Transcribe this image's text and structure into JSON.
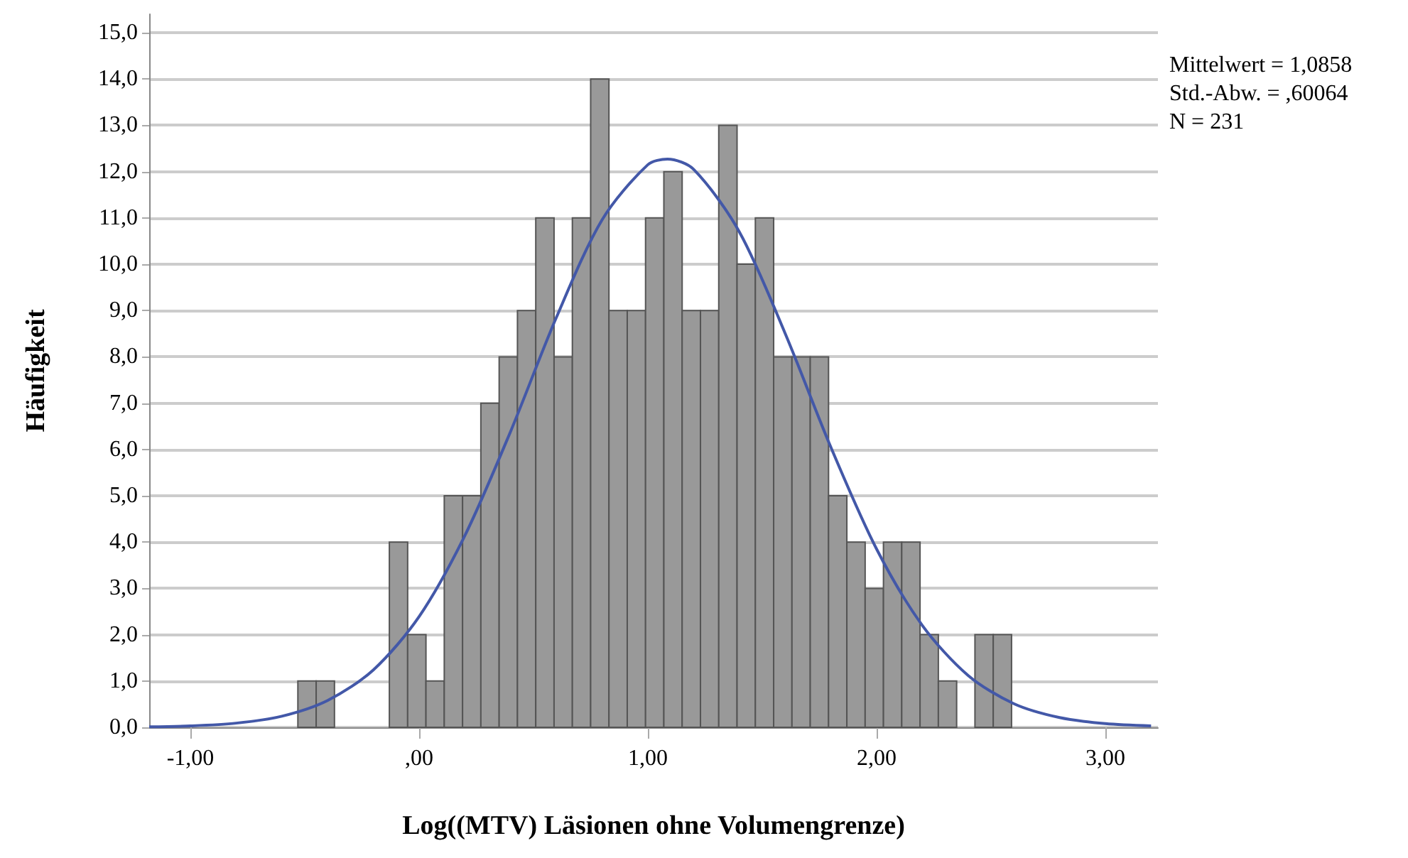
{
  "chart_data": {
    "type": "histogram",
    "xlabel": "Log((MTV) Läsionen ohne Volumengrenze)",
    "ylabel": "Häufigkeit",
    "annotations": [
      "Mittelwert = 1,0858",
      "Std.-Abw. = ,60064",
      "N = 231"
    ],
    "bins": [
      -0.53,
      -0.45,
      -0.37,
      -0.29,
      -0.21,
      -0.13,
      -0.05,
      0.03,
      0.11,
      0.19,
      0.27,
      0.35,
      0.43,
      0.51,
      0.59,
      0.67,
      0.75,
      0.83,
      0.91,
      0.99,
      1.07,
      1.15,
      1.23,
      1.31,
      1.39,
      1.47,
      1.55,
      1.63,
      1.71,
      1.79,
      1.87,
      1.95,
      2.03,
      2.11,
      2.19,
      2.27,
      2.35,
      2.43,
      2.51,
      2.59
    ],
    "series": [
      {
        "color": "#999999",
        "values": [
          1,
          1,
          0,
          0,
          0,
          4,
          2,
          1,
          5,
          5,
          7,
          8,
          9,
          11,
          8,
          11,
          14,
          9,
          9,
          11,
          12,
          9,
          9,
          13,
          10,
          11,
          8,
          8,
          8,
          5,
          4,
          3,
          4,
          4,
          2,
          1,
          0,
          2,
          2
        ]
      },
      {
        "type": "line",
        "color": "#4358a8",
        "x": [
          -1.18,
          -1.0,
          -0.8,
          -0.6,
          -0.4,
          -0.2,
          0,
          0.2,
          0.4,
          0.6,
          0.8,
          1.0,
          1.0858,
          1.2,
          1.4,
          1.6,
          1.8,
          2.0,
          2.2,
          2.4,
          2.6,
          2.8,
          3.0,
          3.2
        ],
        "values": [
          0.01,
          0.03,
          0.09,
          0.24,
          0.58,
          1.24,
          2.39,
          4.14,
          6.39,
          8.85,
          10.96,
          12.15,
          12.27,
          12.05,
          10.7,
          8.51,
          6.05,
          3.85,
          2.2,
          1.12,
          0.51,
          0.21,
          0.08,
          0.03
        ]
      }
    ],
    "xlim": [
      -1.18,
      3.23
    ],
    "xticks": [
      {
        "value": -1,
        "label": "-1,00"
      },
      {
        "value": 0,
        "label": ",00"
      },
      {
        "value": 1,
        "label": "1,00"
      },
      {
        "value": 2,
        "label": "2,00"
      },
      {
        "value": 3,
        "label": "3,00"
      }
    ],
    "ylim": [
      0,
      15.4
    ],
    "yticks": [
      {
        "value": 0,
        "label": "0,0"
      },
      {
        "value": 1,
        "label": "1,0"
      },
      {
        "value": 2,
        "label": "2,0"
      },
      {
        "value": 3,
        "label": "3,0"
      },
      {
        "value": 4,
        "label": "4,0"
      },
      {
        "value": 5,
        "label": "5,0"
      },
      {
        "value": 6,
        "label": "6,0"
      },
      {
        "value": 7,
        "label": "7,0"
      },
      {
        "value": 8,
        "label": "8,0"
      },
      {
        "value": 9,
        "label": "9,0"
      },
      {
        "value": 10,
        "label": "10,0"
      },
      {
        "value": 11,
        "label": "11,0"
      },
      {
        "value": 12,
        "label": "12,0"
      },
      {
        "value": 13,
        "label": "13,0"
      },
      {
        "value": 14,
        "label": "14,0"
      },
      {
        "value": 15,
        "label": "15,0"
      }
    ],
    "grid": "y",
    "marker": "none"
  }
}
